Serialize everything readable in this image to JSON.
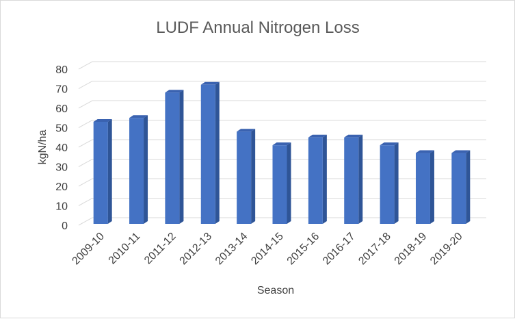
{
  "chart_data": {
    "type": "bar",
    "style": "3d-column",
    "title": "LUDF Annual Nitrogen Loss",
    "xlabel": "Season",
    "ylabel": "kgN/ha",
    "categories": [
      "2009-10",
      "2010-11",
      "2011-12",
      "2012-13",
      "2013-14",
      "2014-15",
      "2015-16",
      "2016-17",
      "2017-18",
      "2018-19",
      "2019-20"
    ],
    "values": [
      53,
      55,
      68,
      72,
      48,
      41,
      45,
      45,
      41,
      37,
      37
    ],
    "ylim": [
      0,
      80
    ],
    "yticks": [
      0,
      10,
      20,
      30,
      40,
      50,
      60,
      70,
      80
    ],
    "grid": true,
    "legend": "none",
    "colors": {
      "bar_front": "#4472c4",
      "bar_side": "#2f5597",
      "bar_top": "#3a62b0",
      "gridline": "#d9d9d9",
      "text": "#595959"
    }
  }
}
